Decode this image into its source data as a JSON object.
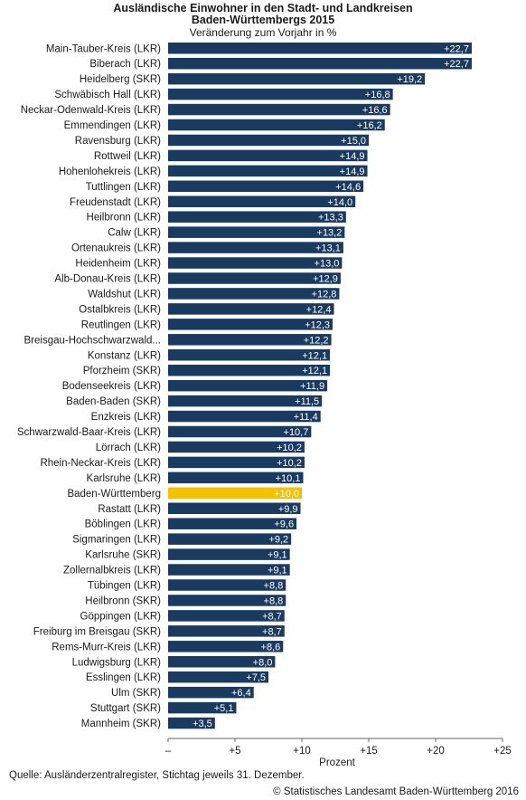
{
  "header": {
    "title_line1": "Ausländische Einwohner in den Stadt- und Landkreisen",
    "title_line2": "Baden-Württembergs 2015",
    "subtitle": "Veränderung zum Vorjahr in %"
  },
  "footer": {
    "source": "Quelle: Ausländerzentralregister, Stichtag jeweils 31. Dezember.",
    "copyright": "© Statistisches Landesamt Baden-Württemberg 2016"
  },
  "colors": {
    "bar": "#1b3a5f",
    "highlight": "#f5c000",
    "axis": "#666666"
  },
  "chart_data": {
    "type": "bar",
    "orientation": "horizontal",
    "title": "Ausländische Einwohner in den Stadt- und Landkreisen Baden-Württembergs 2015",
    "subtitle": "Veränderung zum Vorjahr in %",
    "xlabel": "Prozent",
    "ylabel": "",
    "xlim": [
      0,
      25
    ],
    "x_ticks": [
      0,
      5,
      10,
      15,
      20,
      25
    ],
    "x_tick_labels": [
      "–",
      "+5",
      "+10",
      "+15",
      "+20",
      "+25"
    ],
    "grid": false,
    "highlight_category": "Baden-Württemberg",
    "categories": [
      "Main-Tauber-Kreis (LKR)",
      "Biberach (LKR)",
      "Heidelberg (SKR)",
      "Schwäbisch Hall (LKR)",
      "Neckar-Odenwald-Kreis (LKR)",
      "Emmendingen (LKR)",
      "Ravensburg (LKR)",
      "Rottweil (LKR)",
      "Hohenlohekreis (LKR)",
      "Tuttlingen (LKR)",
      "Freudenstadt (LKR)",
      "Heilbronn (LKR)",
      "Calw (LKR)",
      "Ortenaukreis (LKR)",
      "Heidenheim (LKR)",
      "Alb-Donau-Kreis (LKR)",
      "Waldshut (LKR)",
      "Ostalbkreis (LKR)",
      "Reutlingen (LKR)",
      "Breisgau-Hochschwarzwald...",
      "Konstanz (LKR)",
      "Pforzheim (SKR)",
      "Bodenseekreis (LKR)",
      "Baden-Baden (SKR)",
      "Enzkreis (LKR)",
      "Schwarzwald-Baar-Kreis (LKR)",
      "Lörrach (LKR)",
      "Rhein-Neckar-Kreis (LKR)",
      "Karlsruhe (LKR)",
      "Baden-Württemberg",
      "Rastatt (LKR)",
      "Böblingen (LKR)",
      "Sigmaringen (LKR)",
      "Karlsruhe (SKR)",
      "Zollernalbkreis (LKR)",
      "Tübingen (LKR)",
      "Heilbronn (SKR)",
      "Göppingen (LKR)",
      "Freiburg im Breisgau (SKR)",
      "Rems-Murr-Kreis (LKR)",
      "Ludwigsburg (LKR)",
      "Esslingen (LKR)",
      "Ulm (SKR)",
      "Stuttgart (SKR)",
      "Mannheim (SKR)"
    ],
    "values": [
      22.7,
      22.7,
      19.2,
      16.8,
      16.6,
      16.2,
      15.0,
      14.9,
      14.9,
      14.6,
      14.0,
      13.3,
      13.2,
      13.1,
      13.0,
      12.9,
      12.8,
      12.4,
      12.3,
      12.2,
      12.1,
      12.1,
      11.9,
      11.5,
      11.4,
      10.7,
      10.2,
      10.2,
      10.1,
      10.0,
      9.9,
      9.6,
      9.2,
      9.1,
      9.1,
      8.8,
      8.8,
      8.7,
      8.7,
      8.6,
      8.0,
      7.5,
      6.4,
      5.1,
      3.5
    ],
    "value_labels": [
      "+22,7",
      "+22,7",
      "+19,2",
      "+16,8",
      "+16,6",
      "+16,2",
      "+15,0",
      "+14,9",
      "+14,9",
      "+14,6",
      "+14,0",
      "+13,3",
      "+13,2",
      "+13,1",
      "+13,0",
      "+12,9",
      "+12,8",
      "+12,4",
      "+12,3",
      "+12,2",
      "+12,1",
      "+12,1",
      "+11,9",
      "+11,5",
      "+11,4",
      "+10,7",
      "+10,2",
      "+10,2",
      "+10,1",
      "+10,0",
      "+9,9",
      "+9,6",
      "+9,2",
      "+9,1",
      "+9,1",
      "+8,8",
      "+8,8",
      "+8,7",
      "+8,7",
      "+8,6",
      "+8,0",
      "+7,5",
      "+6,4",
      "+5,1",
      "+3,5"
    ]
  }
}
